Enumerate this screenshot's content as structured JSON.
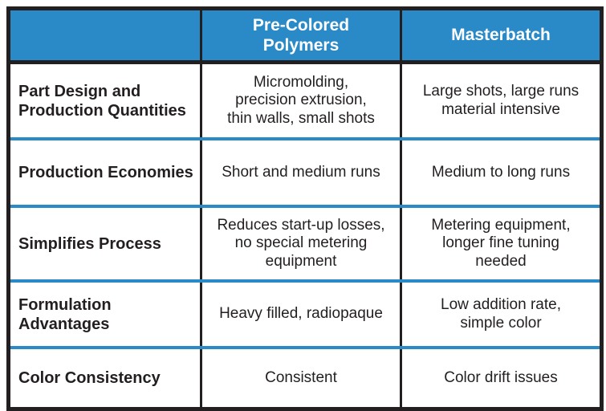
{
  "colors": {
    "header_bg": "#2a8ac8",
    "separator_blue": "#2a8ac8",
    "border_black": "#231f20",
    "text": "#231f20",
    "header_text": "#ffffff"
  },
  "table": {
    "column_headers": {
      "label_col": "",
      "pre_colored": "Pre-Colored\nPolymers",
      "masterbatch": "Masterbatch"
    },
    "rows": [
      {
        "label": "Part Design and\nProduction Quantities",
        "pre_colored": "Micromolding,\nprecision extrusion,\nthin walls, small shots",
        "masterbatch": "Large shots, large runs\nmaterial intensive"
      },
      {
        "label": "Production Economies",
        "pre_colored": "Short and medium runs",
        "masterbatch": "Medium to long runs"
      },
      {
        "label": "Simplifies Process",
        "pre_colored": "Reduces start-up losses,\nno special metering\nequipment",
        "masterbatch": "Metering equipment,\nlonger fine tuning\nneeded"
      },
      {
        "label": "Formulation\nAdvantages",
        "pre_colored": "Heavy filled, radiopaque",
        "masterbatch": "Low addition rate,\nsimple color"
      },
      {
        "label": "Color Consistency",
        "pre_colored": "Consistent",
        "masterbatch": "Color drift issues"
      }
    ]
  }
}
